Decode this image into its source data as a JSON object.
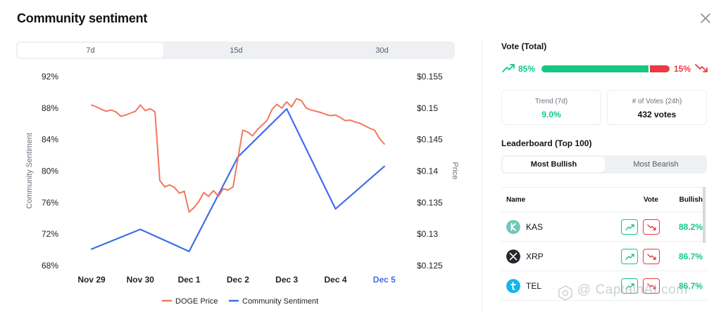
{
  "header": {
    "title": "Community sentiment"
  },
  "range_tabs": [
    {
      "label": "7d",
      "active": true
    },
    {
      "label": "15d",
      "active": false
    },
    {
      "label": "30d",
      "active": false
    }
  ],
  "chart_data": {
    "type": "line",
    "x_ticks": [
      "Nov 29",
      "Nov 30",
      "Dec 1",
      "Dec 2",
      "Dec 3",
      "Dec 4",
      "Dec 5"
    ],
    "left_axis": {
      "label": "Community Sentiment",
      "ticks": [
        "92%",
        "88%",
        "84%",
        "80%",
        "76%",
        "72%",
        "68%"
      ],
      "range": [
        68,
        92
      ]
    },
    "right_axis": {
      "label": "Price",
      "ticks": [
        "$0.155",
        "$0.15",
        "$0.145",
        "$0.14",
        "$0.135",
        "$0.13",
        "$0.125"
      ],
      "range": [
        0.125,
        0.155
      ]
    },
    "legend": [
      "DOGE Price",
      "Community Sentiment"
    ],
    "colors": {
      "price": "#f2775f",
      "sentiment": "#3f6ee8",
      "highlight_tick": "#3f6ee8"
    },
    "series": [
      {
        "name": "Community Sentiment",
        "axis": "left",
        "x": [
          0,
          1,
          2,
          3,
          4,
          5,
          6
        ],
        "values": [
          70.1,
          72.6,
          69.8,
          81.8,
          87.9,
          75.2,
          80.6
        ]
      },
      {
        "name": "DOGE Price",
        "axis": "right",
        "x": [
          0,
          0.1,
          0.2,
          0.3,
          0.4,
          0.5,
          0.6,
          0.7,
          0.8,
          0.9,
          1.0,
          1.1,
          1.2,
          1.3,
          1.4,
          1.5,
          1.6,
          1.7,
          1.8,
          1.9,
          2.0,
          2.1,
          2.2,
          2.3,
          2.4,
          2.5,
          2.6,
          2.7,
          2.8,
          2.9,
          3.0,
          3.1,
          3.2,
          3.3,
          3.4,
          3.5,
          3.6,
          3.7,
          3.8,
          3.9,
          4.0,
          4.1,
          4.2,
          4.3,
          4.4,
          4.5,
          4.6,
          4.7,
          4.8,
          4.9,
          5.0,
          5.1,
          5.2,
          5.3,
          5.4,
          5.5,
          5.6,
          5.7,
          5.8,
          5.9,
          6.0
        ],
        "values": [
          0.1505,
          0.1502,
          0.1498,
          0.1495,
          0.1497,
          0.1494,
          0.1487,
          0.1489,
          0.1492,
          0.1495,
          0.1505,
          0.1496,
          0.1499,
          0.1494,
          0.1385,
          0.1375,
          0.1378,
          0.1374,
          0.1365,
          0.1368,
          0.1335,
          0.1342,
          0.1352,
          0.1366,
          0.136,
          0.1369,
          0.136,
          0.1372,
          0.137,
          0.1375,
          0.142,
          0.1465,
          0.1462,
          0.1456,
          0.1466,
          0.1473,
          0.1481,
          0.1498,
          0.1506,
          0.15,
          0.151,
          0.1502,
          0.1515,
          0.1512,
          0.15,
          0.1497,
          0.1495,
          0.1493,
          0.149,
          0.1488,
          0.1489,
          0.1485,
          0.148,
          0.1481,
          0.1478,
          0.1476,
          0.1472,
          0.1468,
          0.1465,
          0.1452,
          0.1443
        ]
      }
    ]
  },
  "vote": {
    "title": "Vote (Total)",
    "bullish_pct": "85%",
    "bearish_pct": "15%",
    "bullish_fraction": 0.85,
    "colors": {
      "bullish": "#16c784",
      "bearish": "#ea3943"
    }
  },
  "stats": [
    {
      "label": "Trend (7d)",
      "value": "9.0%"
    },
    {
      "label": "# of Votes (24h)",
      "value": "432 votes"
    }
  ],
  "leaderboard": {
    "title": "Leaderboard (Top 100)",
    "tabs": [
      {
        "label": "Most Bullish",
        "active": true
      },
      {
        "label": "Most Bearish",
        "active": false
      }
    ],
    "columns": {
      "name": "Name",
      "vote": "Vote",
      "bullish": "Bullish"
    },
    "rows": [
      {
        "name": "KAS",
        "icon": "kaspa-icon",
        "bullish": "88.2%",
        "icon_color": "#70c7ba"
      },
      {
        "name": "XRP",
        "icon": "xrp-icon",
        "bullish": "86.7%",
        "icon_color": "#23292f"
      },
      {
        "name": "TEL",
        "icon": "telcoin-icon",
        "bullish": "86.7%",
        "icon_color": "#13b5ec"
      }
    ]
  },
  "watermark": "@ CaptainAI.com"
}
